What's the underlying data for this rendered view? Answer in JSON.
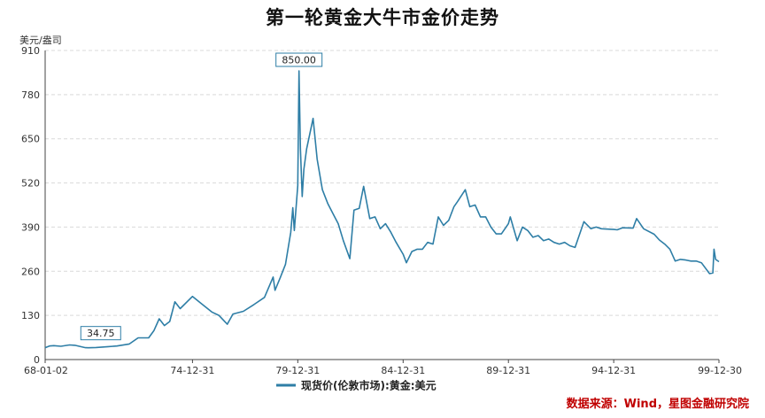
{
  "chart_data": {
    "type": "line",
    "title": "第一轮黄金大牛市金价走势",
    "yunit": "美元/盎司",
    "ylim": [
      0,
      910
    ],
    "yticks": [
      0,
      130,
      260,
      390,
      520,
      650,
      780,
      910
    ],
    "xlim": [
      "1968-01-02",
      "1999-12-30"
    ],
    "xticks": [
      {
        "date": "1968-01-02",
        "label": "68-01-02"
      },
      {
        "date": "1974-12-31",
        "label": "74-12-31"
      },
      {
        "date": "1979-12-31",
        "label": "79-12-31"
      },
      {
        "date": "1984-12-31",
        "label": "84-12-31"
      },
      {
        "date": "1989-12-31",
        "label": "89-12-31"
      },
      {
        "date": "1994-12-31",
        "label": "94-12-31"
      },
      {
        "date": "1999-12-30",
        "label": "99-12-30"
      }
    ],
    "grid": true,
    "legend_position": "bottom",
    "series": [
      {
        "name": "现货价(伦敦市场):黄金:美元",
        "color": "#2e7ea6",
        "points": [
          [
            "1968-01-02",
            35
          ],
          [
            "1968-03-15",
            40
          ],
          [
            "1968-06-01",
            41
          ],
          [
            "1968-10-01",
            39
          ],
          [
            "1969-03-01",
            43
          ],
          [
            "1969-06-01",
            42
          ],
          [
            "1969-12-01",
            35
          ],
          [
            "1970-01-20",
            34.75
          ],
          [
            "1970-06-01",
            35.5
          ],
          [
            "1971-01-01",
            38
          ],
          [
            "1971-06-01",
            40
          ],
          [
            "1972-01-01",
            46
          ],
          [
            "1972-06-01",
            64
          ],
          [
            "1972-12-01",
            64
          ],
          [
            "1973-03-01",
            85
          ],
          [
            "1973-06-01",
            120
          ],
          [
            "1973-09-01",
            100
          ],
          [
            "1973-12-01",
            112
          ],
          [
            "1974-03-01",
            170
          ],
          [
            "1974-06-01",
            150
          ],
          [
            "1974-12-31",
            186
          ],
          [
            "1975-06-01",
            165
          ],
          [
            "1975-12-01",
            140
          ],
          [
            "1976-04-01",
            130
          ],
          [
            "1976-08-25",
            104
          ],
          [
            "1976-12-01",
            134
          ],
          [
            "1977-06-01",
            142
          ],
          [
            "1977-12-01",
            162
          ],
          [
            "1978-06-01",
            183
          ],
          [
            "1978-10-30",
            243
          ],
          [
            "1978-12-01",
            204
          ],
          [
            "1979-03-01",
            241
          ],
          [
            "1979-06-01",
            280
          ],
          [
            "1979-09-01",
            375
          ],
          [
            "1979-10-05",
            447
          ],
          [
            "1979-11-01",
            380
          ],
          [
            "1979-12-31",
            512
          ],
          [
            "1980-01-21",
            850
          ],
          [
            "1980-02-15",
            620
          ],
          [
            "1980-03-17",
            480
          ],
          [
            "1980-04-15",
            560
          ],
          [
            "1980-06-01",
            620
          ],
          [
            "1980-09-22",
            710
          ],
          [
            "1980-12-01",
            590
          ],
          [
            "1981-03-01",
            500
          ],
          [
            "1981-06-01",
            460
          ],
          [
            "1981-09-01",
            430
          ],
          [
            "1981-12-01",
            400
          ],
          [
            "1982-03-01",
            350
          ],
          [
            "1982-06-21",
            297
          ],
          [
            "1982-09-01",
            440
          ],
          [
            "1982-12-01",
            445
          ],
          [
            "1983-02-15",
            510
          ],
          [
            "1983-06-01",
            415
          ],
          [
            "1983-09-01",
            420
          ],
          [
            "1983-12-01",
            385
          ],
          [
            "1984-03-01",
            400
          ],
          [
            "1984-06-01",
            375
          ],
          [
            "1984-09-01",
            345
          ],
          [
            "1984-12-31",
            310
          ],
          [
            "1985-02-25",
            285
          ],
          [
            "1985-06-01",
            318
          ],
          [
            "1985-09-01",
            325
          ],
          [
            "1985-12-01",
            325
          ],
          [
            "1986-03-01",
            345
          ],
          [
            "1986-06-01",
            340
          ],
          [
            "1986-09-01",
            420
          ],
          [
            "1986-12-01",
            395
          ],
          [
            "1987-03-01",
            410
          ],
          [
            "1987-06-01",
            450
          ],
          [
            "1987-08-01",
            465
          ],
          [
            "1987-12-14",
            500
          ],
          [
            "1988-03-01",
            450
          ],
          [
            "1988-06-01",
            455
          ],
          [
            "1988-09-01",
            420
          ],
          [
            "1988-12-01",
            420
          ],
          [
            "1989-03-01",
            390
          ],
          [
            "1989-06-01",
            370
          ],
          [
            "1989-09-01",
            370
          ],
          [
            "1989-12-31",
            400
          ],
          [
            "1990-02-01",
            420
          ],
          [
            "1990-06-01",
            350
          ],
          [
            "1990-09-01",
            390
          ],
          [
            "1990-12-01",
            380
          ],
          [
            "1991-03-01",
            360
          ],
          [
            "1991-06-01",
            365
          ],
          [
            "1991-09-01",
            350
          ],
          [
            "1991-12-01",
            355
          ],
          [
            "1992-03-01",
            345
          ],
          [
            "1992-06-01",
            340
          ],
          [
            "1992-09-01",
            345
          ],
          [
            "1992-12-01",
            335
          ],
          [
            "1993-03-01",
            330
          ],
          [
            "1993-08-02",
            406
          ],
          [
            "1993-12-01",
            385
          ],
          [
            "1994-03-01",
            390
          ],
          [
            "1994-06-01",
            385
          ],
          [
            "1994-12-31",
            383
          ],
          [
            "1995-03-01",
            382
          ],
          [
            "1995-06-01",
            388
          ],
          [
            "1995-12-01",
            387
          ],
          [
            "1996-02-01",
            415
          ],
          [
            "1996-06-01",
            385
          ],
          [
            "1996-12-01",
            369
          ],
          [
            "1997-03-01",
            352
          ],
          [
            "1997-06-01",
            340
          ],
          [
            "1997-09-01",
            325
          ],
          [
            "1997-12-01",
            290
          ],
          [
            "1998-03-01",
            295
          ],
          [
            "1998-06-01",
            293
          ],
          [
            "1998-09-01",
            290
          ],
          [
            "1998-12-01",
            290
          ],
          [
            "1999-03-01",
            285
          ],
          [
            "1999-07-20",
            253
          ],
          [
            "1999-09-15",
            255
          ],
          [
            "1999-10-05",
            325
          ],
          [
            "1999-11-01",
            295
          ],
          [
            "1999-12-30",
            288
          ]
        ]
      }
    ],
    "annotations": [
      {
        "date": "1980-01-21",
        "value": 850,
        "label": "850.00",
        "position": "above"
      },
      {
        "date": "1970-01-20",
        "value": 34.75,
        "label": "34.75",
        "position": "above"
      }
    ]
  },
  "source": "数据来源：Wind，星图金融研究院"
}
